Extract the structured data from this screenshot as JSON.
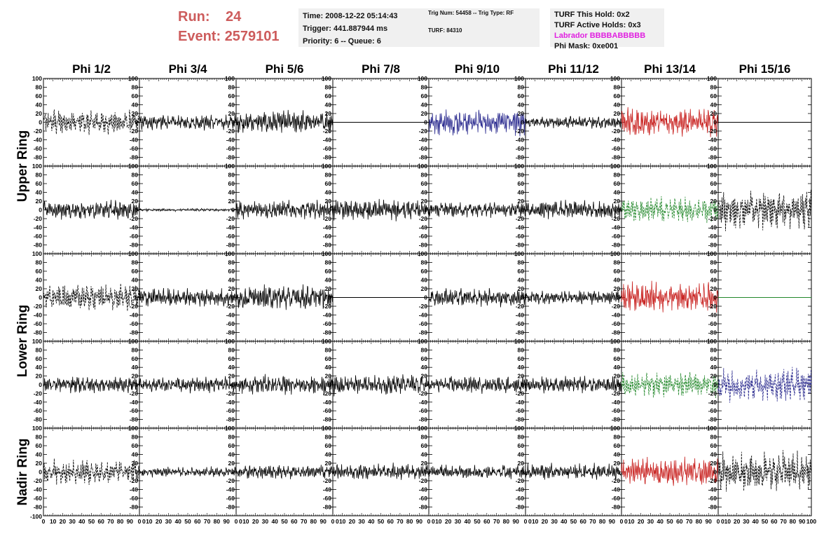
{
  "header": {
    "run_label": "Run:",
    "run_value": "24",
    "event_label": "Event:",
    "event_value": "2579101"
  },
  "info1": {
    "time": "Time: 2008-12-22 05:14:43",
    "trigger": "Trigger: 441.887944 ms",
    "priority": "Priority: 6 -- Queue: 6"
  },
  "info2": {
    "trig": "Trig Num: 54458 -- Trig Type: RF",
    "turf": "TURF: 84310"
  },
  "info3": {
    "hold": "TURF This Hold: 0x2",
    "active": "TURF Active Holds: 0x3",
    "labrador": "Labrador BBBBABBBBB",
    "mask": "Phi Mask: 0xe001"
  },
  "colors": {
    "header": "#cd5c5c",
    "labrador": "#e020e0",
    "black": "#000000",
    "blue": "#2b2b8f",
    "red": "#c8201e",
    "green": "#22882a"
  },
  "chart_data": {
    "type": "line",
    "columns": [
      "Phi 1/2",
      "Phi 3/4",
      "Phi 5/6",
      "Phi 7/8",
      "Phi 9/10",
      "Phi 11/12",
      "Phi 13/14",
      "Phi 15/16"
    ],
    "ring_labels": [
      "Upper Ring",
      "Lower Ring",
      "Nadir Ring"
    ],
    "ylim": [
      -100,
      100
    ],
    "xlim": [
      0,
      100
    ],
    "y_ticks": [
      100,
      80,
      60,
      40,
      20,
      0,
      -20,
      -40,
      -60,
      -80
    ],
    "bottom_y_label": "-100",
    "x_ticks": [
      0,
      10,
      20,
      30,
      40,
      50,
      60,
      70,
      80,
      90
    ],
    "x_tick_text": "0 10 20 30 40 50 60 70 80 90",
    "x_tick_tail": "0",
    "last_x_tick": "100",
    "panels": [
      [
        {
          "color": "black",
          "dashed": true,
          "amp": 25
        },
        {
          "color": "black",
          "amp": 15
        },
        {
          "color": "black",
          "amp": 22
        },
        {
          "color": "black",
          "flat": true
        },
        {
          "color": "blue",
          "amp": 25
        },
        {
          "color": "black",
          "amp": 12
        },
        {
          "color": "red",
          "amp": 28
        },
        {
          "color": "black",
          "flat": true
        }
      ],
      [
        {
          "color": "black",
          "amp": 18
        },
        {
          "color": "black",
          "amp": 3
        },
        {
          "color": "black",
          "amp": 18
        },
        {
          "color": "black",
          "amp": 20
        },
        {
          "color": "black",
          "amp": 15
        },
        {
          "color": "black",
          "amp": 18
        },
        {
          "color": "green",
          "dashed": true,
          "amp": 25
        },
        {
          "color": "black",
          "dashed": true,
          "amp": 38
        }
      ],
      [
        {
          "color": "black",
          "dashed": true,
          "amp": 25
        },
        {
          "color": "black",
          "amp": 18
        },
        {
          "color": "black",
          "amp": 24
        },
        {
          "color": "black",
          "flat": true
        },
        {
          "color": "black",
          "amp": 18
        },
        {
          "color": "black",
          "amp": 14
        },
        {
          "color": "red",
          "amp": 30
        },
        {
          "color": "green",
          "flat": true
        }
      ],
      [
        {
          "color": "black",
          "amp": 16
        },
        {
          "color": "black",
          "amp": 16
        },
        {
          "color": "black",
          "amp": 20
        },
        {
          "color": "black",
          "amp": 20
        },
        {
          "color": "black",
          "amp": 16
        },
        {
          "color": "black",
          "amp": 16
        },
        {
          "color": "green",
          "dashed": true,
          "amp": 25
        },
        {
          "color": "blue",
          "dashed": true,
          "amp": 35
        }
      ],
      [
        {
          "color": "black",
          "dashed": true,
          "amp": 25
        },
        {
          "color": "black",
          "amp": 10
        },
        {
          "color": "black",
          "amp": 14
        },
        {
          "color": "black",
          "amp": 16
        },
        {
          "color": "black",
          "amp": 14
        },
        {
          "color": "black",
          "amp": 16
        },
        {
          "color": "red",
          "amp": 28
        },
        {
          "color": "black",
          "dashed": true,
          "amp": 38
        }
      ]
    ]
  }
}
